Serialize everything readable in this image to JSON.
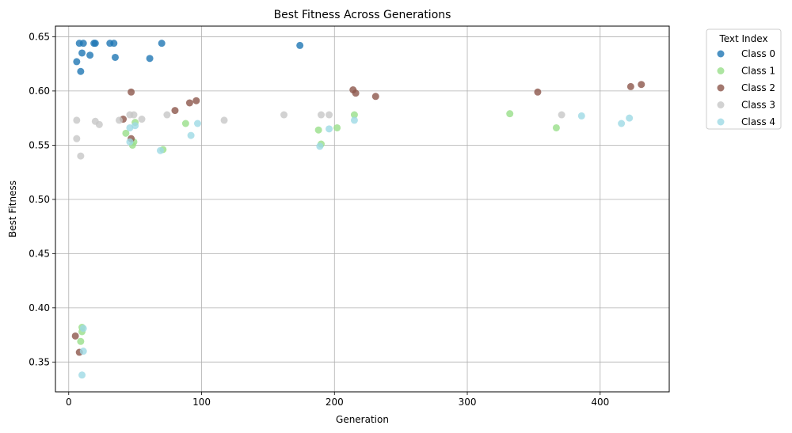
{
  "chart_data": {
    "type": "scatter",
    "title": "Best Fitness Across Generations",
    "xlabel": "Generation",
    "ylabel": "Best Fitness",
    "xlim": [
      -10,
      452
    ],
    "ylim": [
      0.3225,
      0.6598
    ],
    "xticks": [
      0,
      100,
      200,
      300,
      400
    ],
    "yticks": [
      0.35,
      0.4,
      0.45,
      0.5,
      0.55,
      0.6,
      0.65
    ],
    "ytick_labels": [
      "0.35",
      "0.40",
      "0.45",
      "0.50",
      "0.55",
      "0.60",
      "0.65"
    ],
    "grid": true,
    "legend": {
      "title": "Text Index",
      "placement": "outside-right"
    },
    "series": [
      {
        "name": "Class 0",
        "color": "#1f77b4",
        "points": [
          [
            8,
            0.644
          ],
          [
            11,
            0.644
          ],
          [
            19,
            0.644
          ],
          [
            20,
            0.644
          ],
          [
            31,
            0.644
          ],
          [
            34,
            0.644
          ],
          [
            70,
            0.644
          ],
          [
            10,
            0.635
          ],
          [
            16,
            0.633
          ],
          [
            35,
            0.631
          ],
          [
            6,
            0.627
          ],
          [
            61,
            0.63
          ],
          [
            9,
            0.618
          ],
          [
            174,
            0.642
          ]
        ]
      },
      {
        "name": "Class 1",
        "color": "#98df8a",
        "points": [
          [
            43,
            0.561
          ],
          [
            49,
            0.553
          ],
          [
            48,
            0.55
          ],
          [
            50,
            0.571
          ],
          [
            71,
            0.546
          ],
          [
            88,
            0.57
          ],
          [
            188,
            0.564
          ],
          [
            190,
            0.551
          ],
          [
            202,
            0.566
          ],
          [
            215,
            0.578
          ],
          [
            332,
            0.579
          ],
          [
            367,
            0.566
          ],
          [
            10,
            0.378
          ],
          [
            10,
            0.382
          ],
          [
            9,
            0.369
          ]
        ]
      },
      {
        "name": "Class 2",
        "color": "#8c564b",
        "points": [
          [
            47,
            0.599
          ],
          [
            41,
            0.574
          ],
          [
            47,
            0.556
          ],
          [
            80,
            0.582
          ],
          [
            91,
            0.589
          ],
          [
            96,
            0.591
          ],
          [
            214,
            0.601
          ],
          [
            216,
            0.598
          ],
          [
            231,
            0.595
          ],
          [
            353,
            0.599
          ],
          [
            423,
            0.604
          ],
          [
            431,
            0.606
          ],
          [
            5,
            0.374
          ],
          [
            8,
            0.359
          ]
        ]
      },
      {
        "name": "Class 3",
        "color": "#c7c7c7",
        "points": [
          [
            6,
            0.573
          ],
          [
            6,
            0.556
          ],
          [
            9,
            0.54
          ],
          [
            20,
            0.572
          ],
          [
            23,
            0.569
          ],
          [
            38,
            0.573
          ],
          [
            46,
            0.578
          ],
          [
            49,
            0.578
          ],
          [
            55,
            0.574
          ],
          [
            74,
            0.578
          ],
          [
            117,
            0.573
          ],
          [
            162,
            0.578
          ],
          [
            190,
            0.578
          ],
          [
            196,
            0.578
          ],
          [
            371,
            0.578
          ]
        ]
      },
      {
        "name": "Class 4",
        "color": "#9edae5",
        "points": [
          [
            46,
            0.566
          ],
          [
            50,
            0.568
          ],
          [
            46,
            0.553
          ],
          [
            69,
            0.545
          ],
          [
            92,
            0.559
          ],
          [
            97,
            0.57
          ],
          [
            189,
            0.549
          ],
          [
            196,
            0.565
          ],
          [
            215,
            0.573
          ],
          [
            386,
            0.577
          ],
          [
            416,
            0.57
          ],
          [
            422,
            0.575
          ],
          [
            11,
            0.381
          ],
          [
            11,
            0.36
          ],
          [
            10,
            0.338
          ]
        ]
      }
    ]
  }
}
